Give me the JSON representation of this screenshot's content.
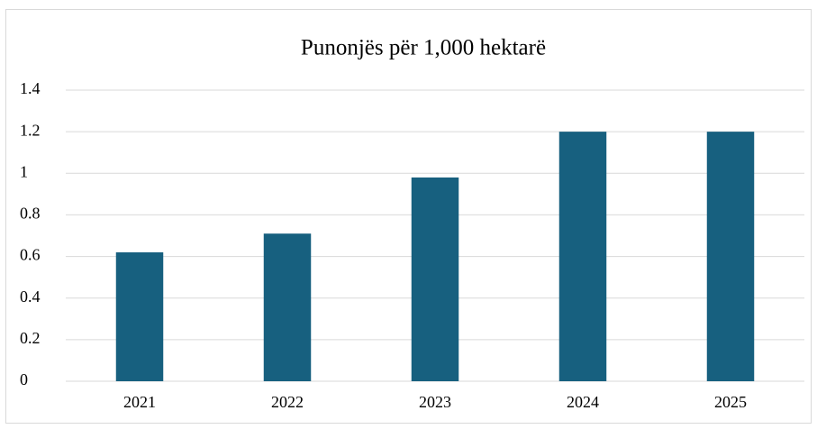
{
  "chart_data": {
    "type": "bar",
    "title": "Punonjës për 1,000 hektarë",
    "categories": [
      "2021",
      "2022",
      "2023",
      "2024",
      "2025"
    ],
    "values": [
      0.62,
      0.71,
      0.98,
      1.2,
      1.2
    ],
    "color": "#17607f",
    "ylim": [
      0,
      1.4
    ],
    "yticks": [
      0,
      0.2,
      0.4,
      0.6,
      0.8,
      1,
      1.2,
      1.4
    ],
    "grid": true
  }
}
